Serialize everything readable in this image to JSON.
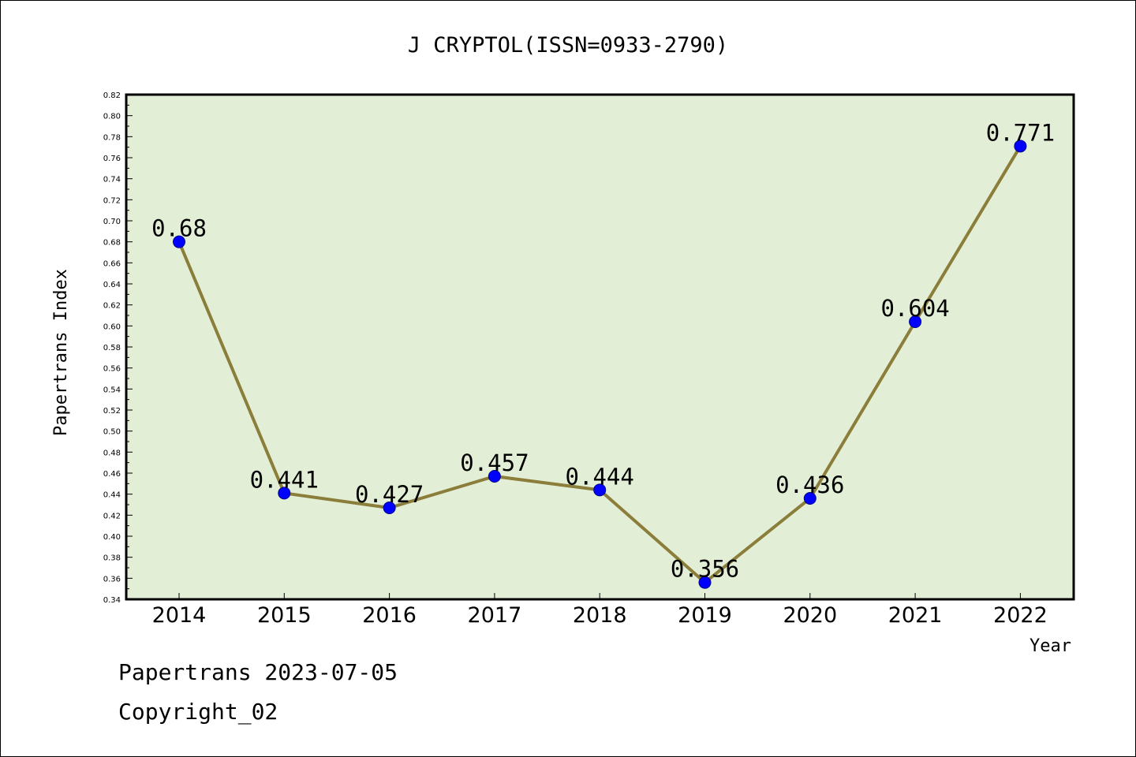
{
  "chart_data": {
    "type": "line",
    "title": "J CRYPTOL(ISSN=0933-2790)",
    "xlabel": "Year",
    "ylabel": "Papertrans Index",
    "categories": [
      "2014",
      "2015",
      "2016",
      "2017",
      "2018",
      "2019",
      "2020",
      "2021",
      "2022"
    ],
    "series": [
      {
        "values": [
          0.68,
          0.441,
          0.427,
          0.457,
          0.444,
          0.356,
          0.436,
          0.604,
          0.771
        ]
      }
    ],
    "data_labels": [
      "0.68",
      "0.441",
      "0.427",
      "0.457",
      "0.444",
      "0.356",
      "0.436",
      "0.604",
      "0.771"
    ],
    "ylim": [
      0.34,
      0.82
    ],
    "yticks": [
      "0.34",
      "0.36",
      "0.38",
      "0.40",
      "0.42",
      "0.44",
      "0.46",
      "0.48",
      "0.50",
      "0.52",
      "0.54",
      "0.56",
      "0.58",
      "0.60",
      "0.62",
      "0.64",
      "0.66",
      "0.68",
      "0.70",
      "0.72",
      "0.74",
      "0.76",
      "0.78",
      "0.80",
      "0.82"
    ],
    "grid": false,
    "colors": {
      "plot_background": "#e2efd6",
      "line": "#8b7d3a",
      "marker": "#0000ff",
      "marker_edge": "#00008b"
    }
  },
  "footer": {
    "line1": "Papertrans 2023-07-05",
    "line2": "Copyright_02"
  }
}
